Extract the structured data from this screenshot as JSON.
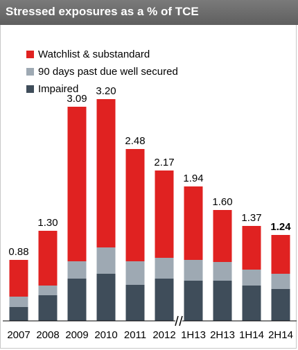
{
  "header": {
    "title": "Stressed exposures as a % of TCE"
  },
  "colors": {
    "header_bg": "#6b6b6b",
    "watchlist": "#e02221",
    "past_due": "#9ea9b3",
    "impaired": "#3f4d5a"
  },
  "chart_data": {
    "type": "bar",
    "stacked": true,
    "title": "Stressed exposures as a % of TCE",
    "xlabel": "",
    "ylabel": "",
    "ylim": [
      0,
      3.5
    ],
    "legend_position": "top-left",
    "grid": false,
    "axis_break": "between 2012 and 1H13",
    "categories": [
      "2007",
      "2008",
      "2009",
      "2010",
      "2011",
      "2012",
      "1H13",
      "2H13",
      "1H14",
      "2H14"
    ],
    "series": [
      {
        "name": "Watchlist & substandard",
        "values": [
          0.53,
          0.79,
          2.23,
          2.14,
          1.62,
          1.26,
          1.06,
          0.75,
          0.63,
          0.56
        ]
      },
      {
        "name": "90 days past due well secured",
        "values": [
          0.15,
          0.14,
          0.25,
          0.38,
          0.34,
          0.3,
          0.3,
          0.27,
          0.23,
          0.22
        ]
      },
      {
        "name": "Impaired",
        "values": [
          0.2,
          0.37,
          0.61,
          0.68,
          0.52,
          0.61,
          0.58,
          0.58,
          0.51,
          0.46
        ]
      }
    ],
    "totals": [
      "0.88",
      "1.30",
      "3.09",
      "3.20",
      "2.48",
      "2.17",
      "1.94",
      "1.60",
      "1.37",
      "1.24"
    ],
    "highlight_index": 9
  }
}
